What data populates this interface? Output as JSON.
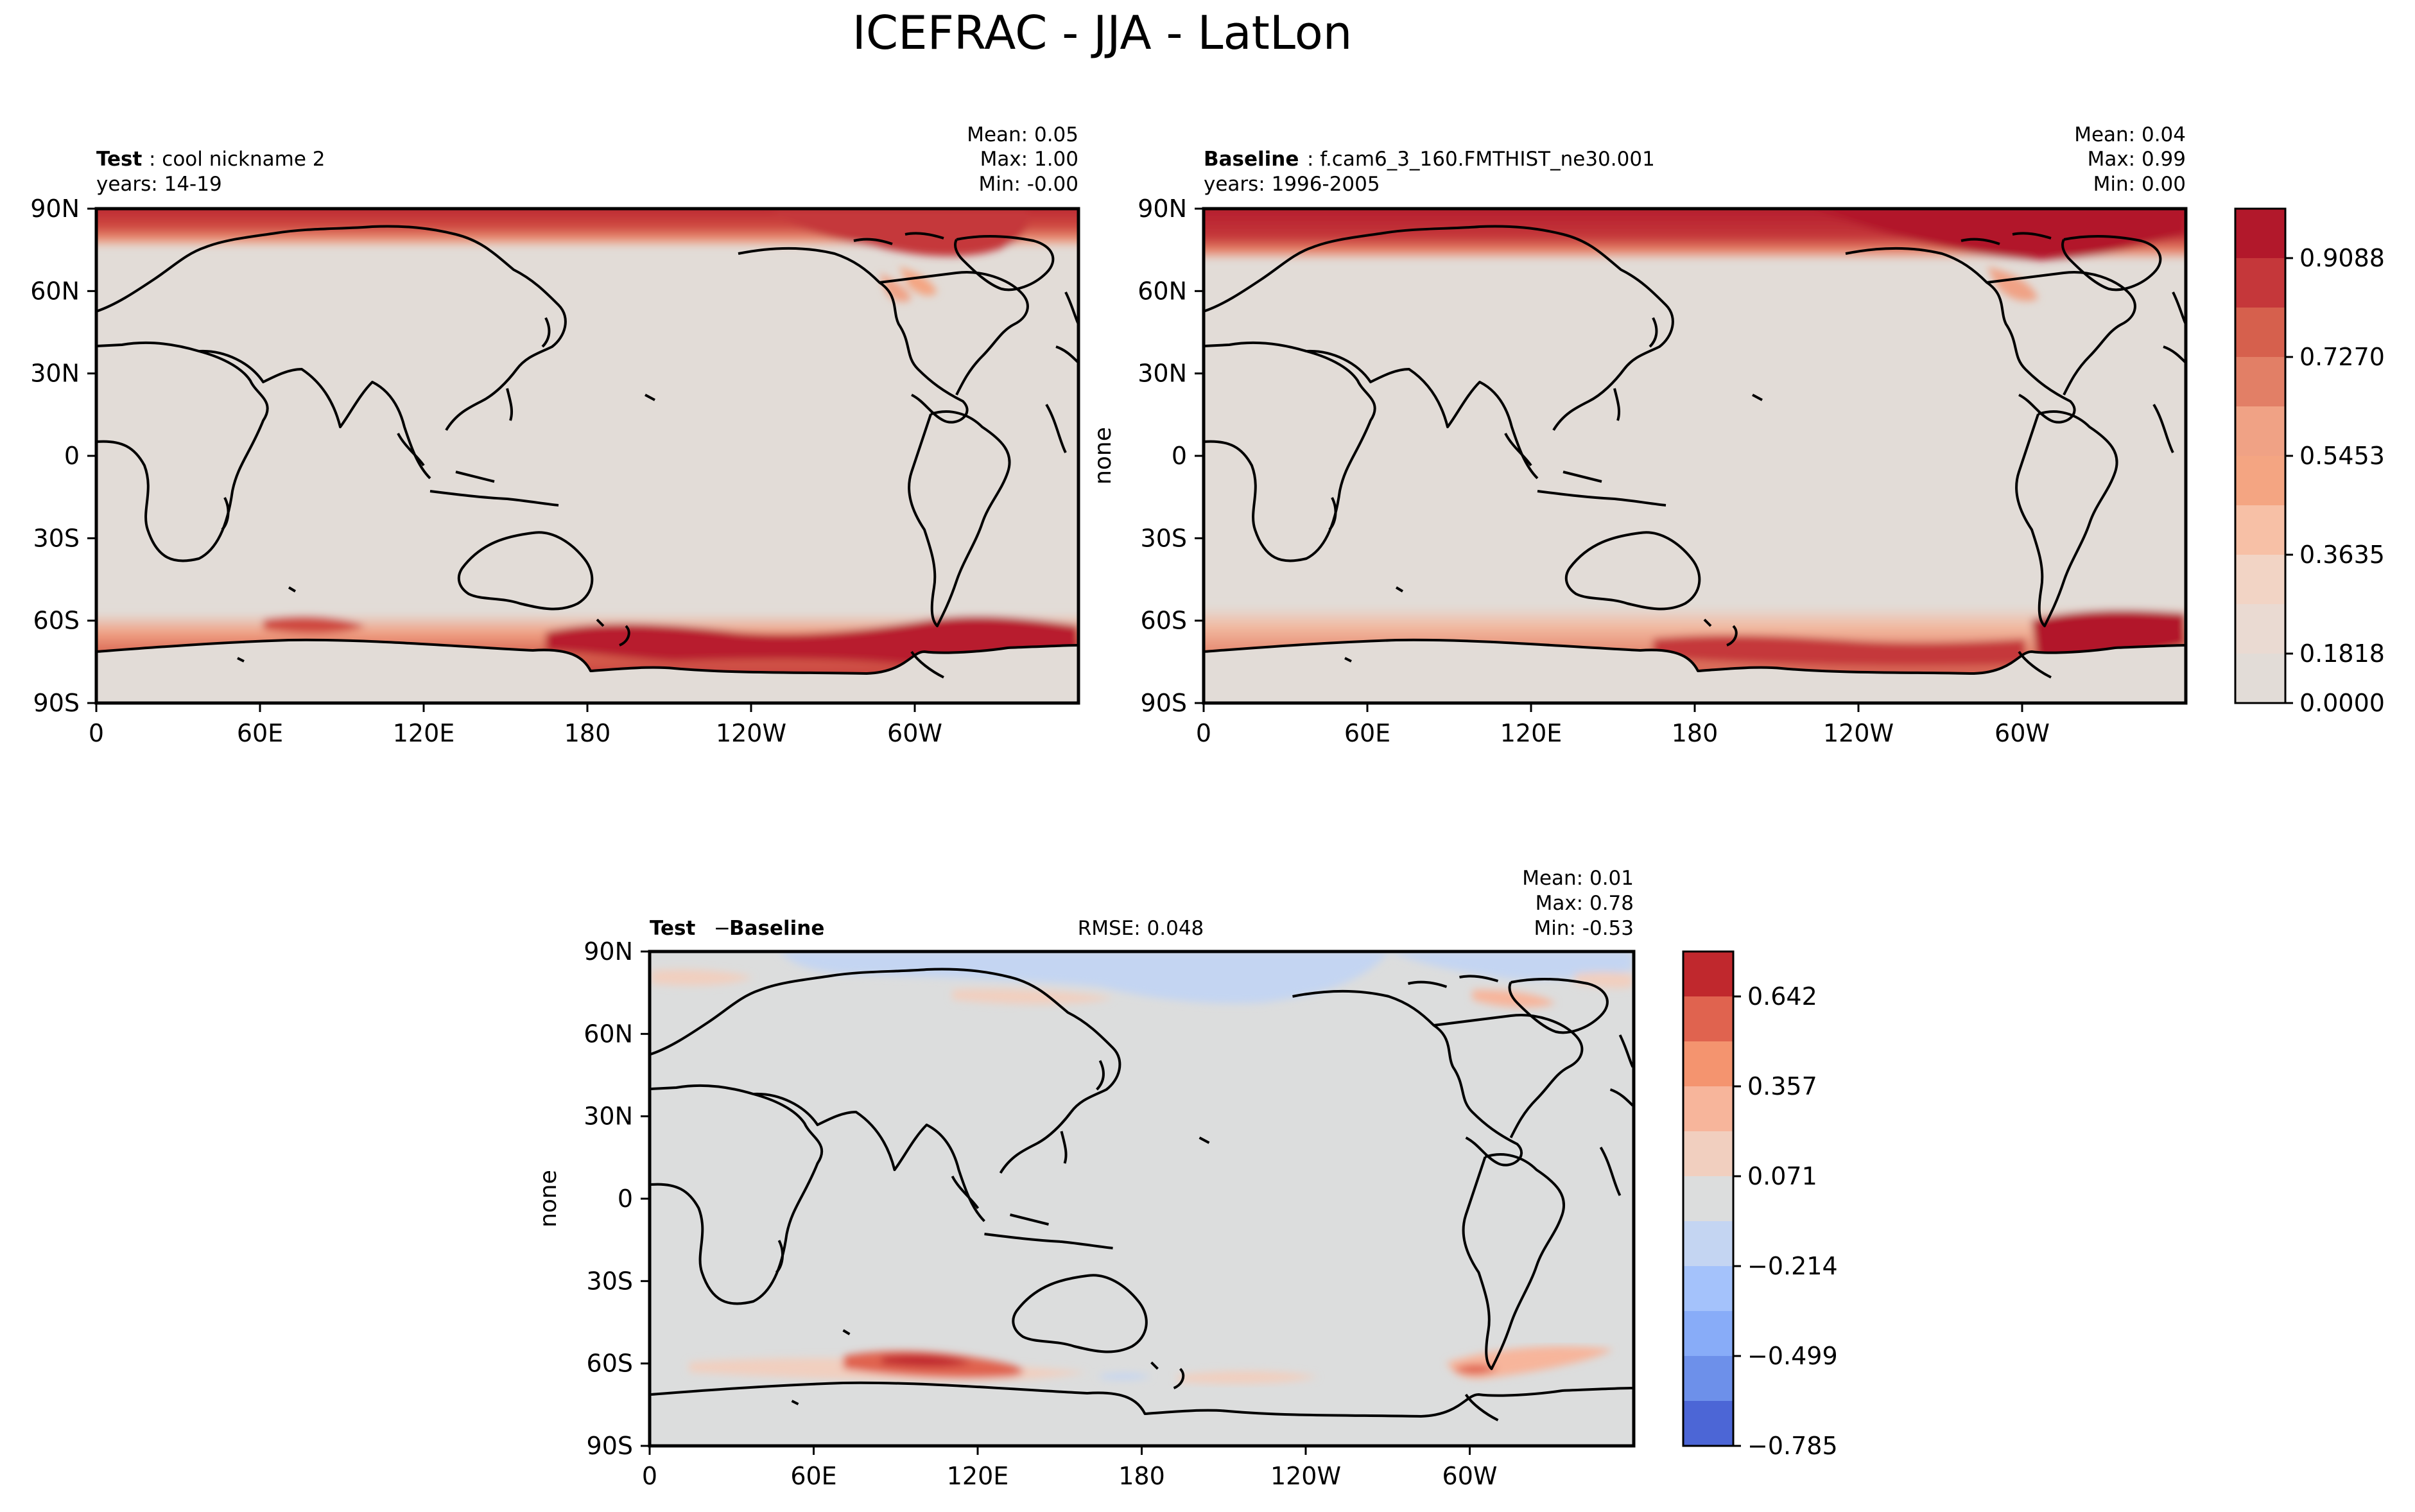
{
  "figure": {
    "suptitle": "ICEFRAC - JJA - LatLon"
  },
  "colors": {
    "land": "#e2dcd7",
    "land_diff": "#dcdddd",
    "coast": "#000000"
  },
  "chart_data": [
    {
      "type": "heatmap",
      "panel": "test",
      "title_bold": "Test",
      "title_rest": ": cool nickname 2",
      "years": "years: 14-19",
      "stats": {
        "mean": "Mean:  0.05",
        "max": "Max:  1.00",
        "min": "Min: -0.00"
      },
      "ylabel": "",
      "xlim": [
        0,
        360
      ],
      "ylim": [
        -90,
        90
      ],
      "xticks": [
        "0",
        "60E",
        "120E",
        "180",
        "120W",
        "60W"
      ],
      "yticks": [
        "90N",
        "60N",
        "30N",
        "0",
        "30S",
        "60S",
        "90S"
      ],
      "field": "sea ice fraction",
      "arctic_band": {
        "lat_edge": 78,
        "peak": 0.95
      },
      "antarctic_band": {
        "lat_range": [
          -76,
          -60
        ],
        "peak": 0.95
      }
    },
    {
      "type": "heatmap",
      "panel": "baseline",
      "title_bold": "Baseline",
      "title_rest": ": f.cam6_3_160.FMTHIST_ne30.001",
      "years": "years: 1996-2005",
      "stats": {
        "mean": "Mean:  0.04",
        "max": "Max:  0.99",
        "min": "Min:  0.00"
      },
      "ylabel": "none",
      "xlim": [
        0,
        360
      ],
      "ylim": [
        -90,
        90
      ],
      "xticks": [
        "0",
        "60E",
        "120E",
        "180",
        "120W",
        "60W"
      ],
      "yticks": [
        "90N",
        "60N",
        "30N",
        "0",
        "30S",
        "60S",
        "90S"
      ],
      "colorbar": {
        "levels": [
          "0.9088",
          "0.7270",
          "0.5453",
          "0.3635",
          "0.1818",
          "0.0000"
        ],
        "colors": [
          "#b2182b",
          "#c5373a",
          "#d6604d",
          "#e27f66",
          "#f0a285",
          "#f4a582",
          "#f7c0a6",
          "#f2d4c5",
          "#eadad2",
          "#e2dcd7"
        ]
      }
    },
    {
      "type": "heatmap",
      "panel": "difference",
      "title_bold": "Test",
      "title_minus": "−",
      "title_bold2": "Baseline",
      "rmse": "RMSE: 0.048",
      "stats": {
        "mean": "Mean:  0.01",
        "max": "Max:  0.78",
        "min": "Min: -0.53"
      },
      "ylabel": "none",
      "xlim": [
        0,
        360
      ],
      "ylim": [
        -90,
        90
      ],
      "xticks": [
        "0",
        "60E",
        "120E",
        "180",
        "120W",
        "60W"
      ],
      "yticks": [
        "90N",
        "60N",
        "30N",
        "0",
        "30S",
        "60S",
        "90S"
      ],
      "colorbar": {
        "levels": [
          "0.642",
          "0.357",
          "0.071",
          "−0.214",
          "−0.499",
          "−0.785"
        ],
        "colors": [
          "#c0282d",
          "#e0634f",
          "#f4946f",
          "#f7b59b",
          "#f1cfbf",
          "#dcdddd",
          "#c4d5f2",
          "#a4c2fb",
          "#88acf8",
          "#6d90ea",
          "#4c66d6"
        ]
      }
    }
  ]
}
